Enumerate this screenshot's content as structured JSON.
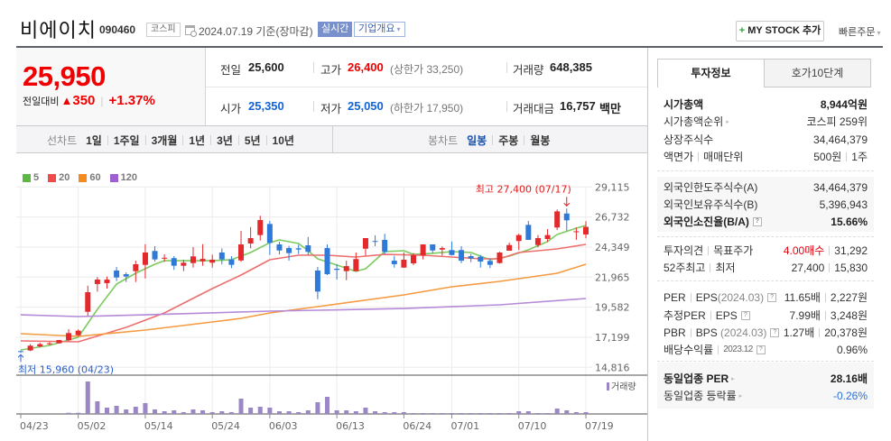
{
  "header": {
    "company_name": "비에이치",
    "stock_code": "090460",
    "market_badge": "코스피",
    "date_text": "2024.07.19 기준(장마감)",
    "realtime_badge": "실시간",
    "company_overview": "기업개요",
    "caret": "▾",
    "my_stock_plus": "+",
    "my_stock_button": "MY STOCK 추가",
    "quick_order": "빠른주문"
  },
  "price": {
    "current": "25,950",
    "change_label": "전일대비",
    "change_arrow": "▲",
    "change_amount": "350",
    "change_percent": "+1.37%",
    "color_up": "#f00000",
    "color_down": "#1464d6"
  },
  "summary": {
    "prev_close_label": "전일",
    "prev_close": "25,600",
    "high_label": "고가",
    "high": "26,400",
    "upper_limit": "(상한가 33,250)",
    "volume_label": "거래량",
    "volume": "648,385",
    "open_label": "시가",
    "open": "25,350",
    "low_label": "저가",
    "low": "25,050",
    "lower_limit": "(하한가 17,950)",
    "amount_label": "거래대금",
    "amount": "16,757",
    "amount_unit": "백만"
  },
  "toolbar": {
    "line_chart_label": "선차트",
    "line_periods": [
      "1일",
      "1주일",
      "3개월",
      "1년",
      "3년",
      "5년",
      "10년"
    ],
    "candle_chart_label": "봉차트",
    "candle_periods": [
      "일봉",
      "주봉",
      "월봉"
    ],
    "active_period": "일봉"
  },
  "legend": [
    {
      "label": "5",
      "color": "#5db843"
    },
    {
      "label": "20",
      "color": "#ee4b4b"
    },
    {
      "label": "60",
      "color": "#f58a1f"
    },
    {
      "label": "120",
      "color": "#9f5fd1"
    }
  ],
  "invest_info": {
    "tabs": [
      {
        "label": "투자정보",
        "active": true
      },
      {
        "label": "호가10단계",
        "active": false
      }
    ],
    "market_cap": {
      "label": "시가총액",
      "value": "8,944억원"
    },
    "market_cap_rank": {
      "label": "시가총액순위",
      "value": "코스피 259위"
    },
    "listed_shares": {
      "label": "상장주식수",
      "value": "34,464,379"
    },
    "par_value": {
      "label": "액면가",
      "label2": "매매단위",
      "value": "500원",
      "value2": "1주"
    },
    "foreign_limit": {
      "label": "외국인한도주식수(A)",
      "value": "34,464,379"
    },
    "foreign_holding": {
      "label": "외국인보유주식수(B)",
      "value": "5,396,943"
    },
    "foreign_ratio": {
      "label": "외국인소진율(B/A)",
      "value": "15.66%"
    },
    "opinion": {
      "label": "투자의견",
      "label2": "목표주가",
      "value": "4.00매수",
      "value2": "31,292"
    },
    "week52": {
      "label": "52주최고",
      "label2": "최저",
      "value": "27,400",
      "value2": "15,830"
    },
    "per_eps": {
      "label": "PER",
      "label2": "EPS",
      "period": "(2024.03)",
      "value": "11.65배",
      "value2": "2,227원"
    },
    "est_per_eps": {
      "label": "추정PER",
      "label2": "EPS",
      "value": "7.99배",
      "value2": "3,248원"
    },
    "pbr_bps": {
      "label": "PBR",
      "label2": "BPS",
      "period": "(2024.03)",
      "value": "1.27배",
      "value2": "20,378원"
    },
    "dividend": {
      "label": "배당수익률",
      "label2": "2023.12",
      "value": "0.96%"
    },
    "sector_per": {
      "label": "동일업종 PER",
      "value": "28.16배"
    },
    "sector_change": {
      "label": "동일업종 등락률",
      "value": "-0.26%"
    },
    "help_glyph": "?",
    "arrow_glyph": "▸"
  },
  "chart_data": {
    "type": "candlestick",
    "title": "비에이치 일봉",
    "xlabel": "",
    "ylabel": "",
    "ylim": [
      14816,
      29115
    ],
    "grid": true,
    "yticks": [
      {
        "value": 29115,
        "label": "29,115"
      },
      {
        "value": 26732,
        "label": "26,732"
      },
      {
        "value": 24349,
        "label": "24,349"
      },
      {
        "value": 21965,
        "label": "21,965"
      },
      {
        "value": 19582,
        "label": "19,582"
      },
      {
        "value": 17199,
        "label": "17,199"
      },
      {
        "value": 14816,
        "label": "14,816"
      }
    ],
    "xticks": [
      {
        "index": 0,
        "label": "04/23"
      },
      {
        "index": 6,
        "label": "05/02"
      },
      {
        "index": 13,
        "label": "05/14"
      },
      {
        "index": 20,
        "label": "05/24"
      },
      {
        "index": 26,
        "label": "06/03"
      },
      {
        "index": 33,
        "label": "06/13"
      },
      {
        "index": 40,
        "label": "06/24"
      },
      {
        "index": 45,
        "label": "07/01"
      },
      {
        "index": 52,
        "label": "07/10"
      },
      {
        "index": 59,
        "label": "07/19"
      }
    ],
    "candle_fields": [
      "open",
      "high",
      "low",
      "close"
    ],
    "candles": [
      [
        16100,
        16150,
        15960,
        16050
      ],
      [
        16150,
        16650,
        16100,
        16530
      ],
      [
        16480,
        16770,
        16410,
        16650
      ],
      [
        16700,
        16820,
        16580,
        16720
      ],
      [
        16720,
        16990,
        16700,
        16980
      ],
      [
        16960,
        17840,
        16900,
        17530
      ],
      [
        17360,
        17820,
        17280,
        17720
      ],
      [
        19220,
        21290,
        18910,
        20770
      ],
      [
        21420,
        21970,
        20820,
        21770
      ],
      [
        21490,
        22010,
        21060,
        21770
      ],
      [
        22490,
        22770,
        21650,
        21940
      ],
      [
        22200,
        22340,
        21580,
        22010
      ],
      [
        22440,
        23270,
        21580,
        22990
      ],
      [
        22940,
        24580,
        21860,
        23920
      ],
      [
        24040,
        24420,
        23200,
        23370
      ],
      [
        23460,
        23770,
        23180,
        23500
      ],
      [
        23470,
        23630,
        22540,
        22870
      ],
      [
        22870,
        23340,
        22440,
        23110
      ],
      [
        23080,
        24350,
        22720,
        23610
      ],
      [
        23220,
        24580,
        22870,
        23410
      ],
      [
        23110,
        23750,
        22720,
        23350
      ],
      [
        23920,
        24250,
        22970,
        23370
      ],
      [
        23370,
        23630,
        22680,
        22940
      ],
      [
        23290,
        25630,
        23180,
        24560
      ],
      [
        24630,
        25940,
        24250,
        25060
      ],
      [
        25300,
        26830,
        24870,
        26490
      ],
      [
        26180,
        26420,
        23720,
        24680
      ],
      [
        24560,
        24770,
        23770,
        24080
      ],
      [
        24270,
        24440,
        23270,
        23870
      ],
      [
        24250,
        24540,
        23800,
        24150
      ],
      [
        24490,
        25150,
        23720,
        23970
      ],
      [
        22490,
        22770,
        20220,
        20820
      ],
      [
        24270,
        24560,
        22130,
        22200
      ],
      [
        22630,
        22990,
        21770,
        22540
      ],
      [
        22440,
        23270,
        21720,
        22840
      ],
      [
        22440,
        23920,
        22440,
        23400
      ],
      [
        24220,
        25060,
        23680,
        25060
      ],
      [
        24830,
        25280,
        24420,
        24790
      ],
      [
        24920,
        25400,
        23800,
        23970
      ],
      [
        23270,
        23650,
        22720,
        22990
      ],
      [
        22720,
        23920,
        22720,
        23350
      ],
      [
        23060,
        23870,
        22920,
        23700
      ],
      [
        23680,
        24560,
        23370,
        24560
      ],
      [
        24560,
        24560,
        23870,
        24080
      ],
      [
        24150,
        24400,
        23680,
        24270
      ],
      [
        24110,
        24800,
        23680,
        23720
      ],
      [
        24110,
        24420,
        23080,
        23270
      ],
      [
        23630,
        23800,
        23150,
        23440
      ],
      [
        23580,
        23720,
        22720,
        23200
      ],
      [
        23250,
        23440,
        22680,
        22940
      ],
      [
        23080,
        23970,
        23040,
        23920
      ],
      [
        24060,
        24700,
        24060,
        24510
      ],
      [
        24830,
        25400,
        24110,
        25300
      ],
      [
        26110,
        26420,
        24920,
        24920
      ],
      [
        24510,
        25300,
        24330,
        25060
      ],
      [
        24990,
        25780,
        24750,
        25300
      ],
      [
        25900,
        27330,
        25700,
        27180
      ],
      [
        27010,
        27400,
        25650,
        26470
      ],
      [
        25600,
        25900,
        24920,
        25600
      ],
      [
        25350,
        26400,
        25050,
        25950
      ]
    ],
    "moving_averages": [
      {
        "name": "5",
        "color": "#7ccb5f",
        "points": [
          [
            0,
            16195
          ],
          [
            3,
            16550
          ],
          [
            6,
            17200
          ],
          [
            8,
            19410
          ],
          [
            10,
            21415
          ],
          [
            12,
            22270
          ],
          [
            14,
            22990
          ],
          [
            15,
            23270
          ],
          [
            20,
            23270
          ],
          [
            22,
            23345
          ],
          [
            24,
            23920
          ],
          [
            26,
            24700
          ],
          [
            27,
            24920
          ],
          [
            29,
            24630
          ],
          [
            30,
            24060
          ],
          [
            31,
            23420
          ],
          [
            33,
            22920
          ],
          [
            35,
            22420
          ],
          [
            36,
            22630
          ],
          [
            38,
            23990
          ],
          [
            40,
            24060
          ],
          [
            41,
            23770
          ],
          [
            43,
            23850
          ],
          [
            45,
            23990
          ],
          [
            47,
            23920
          ],
          [
            49,
            23345
          ],
          [
            51,
            23630
          ],
          [
            53,
            24130
          ],
          [
            55,
            24780
          ],
          [
            56,
            25350
          ],
          [
            58,
            25850
          ],
          [
            59,
            26060
          ]
        ]
      },
      {
        "name": "20",
        "color": "#ef6f6f",
        "points": [
          [
            0,
            16910
          ],
          [
            6,
            16840
          ],
          [
            11,
            17980
          ],
          [
            15,
            19130
          ],
          [
            20,
            21060
          ],
          [
            23,
            22130
          ],
          [
            26,
            23345
          ],
          [
            29,
            23700
          ],
          [
            32,
            23700
          ],
          [
            35,
            23560
          ],
          [
            38,
            23770
          ],
          [
            42,
            23700
          ],
          [
            45,
            23560
          ],
          [
            48,
            23420
          ],
          [
            50,
            23420
          ],
          [
            52,
            23920
          ],
          [
            56,
            24200
          ],
          [
            59,
            24560
          ]
        ]
      },
      {
        "name": "60",
        "color": "#f49a3f",
        "points": [
          [
            0,
            17480
          ],
          [
            6,
            17270
          ],
          [
            13,
            17770
          ],
          [
            20,
            18410
          ],
          [
            23,
            18700
          ],
          [
            26,
            19130
          ],
          [
            31,
            19630
          ],
          [
            40,
            20560
          ],
          [
            45,
            21200
          ],
          [
            50,
            21630
          ],
          [
            56,
            22270
          ],
          [
            59,
            22990
          ]
        ]
      },
      {
        "name": "120",
        "color": "#b58ad8",
        "points": [
          [
            0,
            18980
          ],
          [
            6,
            18840
          ],
          [
            13,
            18980
          ],
          [
            26,
            19270
          ],
          [
            31,
            19340
          ],
          [
            40,
            19480
          ],
          [
            50,
            19770
          ],
          [
            59,
            20270
          ]
        ]
      }
    ],
    "volume_label": "거래량",
    "volume_thousands": [
      0,
      0,
      0,
      0,
      0,
      420,
      420,
      11660,
      4540,
      2270,
      2920,
      1620,
      2590,
      3890,
      1620,
      970,
      1300,
      650,
      1620,
      1300,
      650,
      970,
      650,
      5510,
      2270,
      2590,
      2270,
      970,
      970,
      650,
      1300,
      4210,
      6160,
      1300,
      1300,
      970,
      2270,
      970,
      650,
      650,
      650,
      320,
      320,
      320,
      320,
      320,
      320,
      320,
      320,
      320,
      320,
      320,
      970,
      970,
      320,
      320,
      1940,
      1300,
      650,
      648
    ],
    "annotations": {
      "high": {
        "index": 57,
        "price": 27400,
        "text": "최고 27,400 (07/17)",
        "color": "#e01e1e"
      },
      "low": {
        "index": 0,
        "price": 15960,
        "text": "최저 15,960 (04/23)",
        "color": "#2a5fc9"
      }
    },
    "colors": {
      "up": "#e4292d",
      "down": "#2f7ad9",
      "volume": "#9b86c6",
      "grid": "#ebebeb",
      "axis": "#8a8a8a"
    }
  }
}
